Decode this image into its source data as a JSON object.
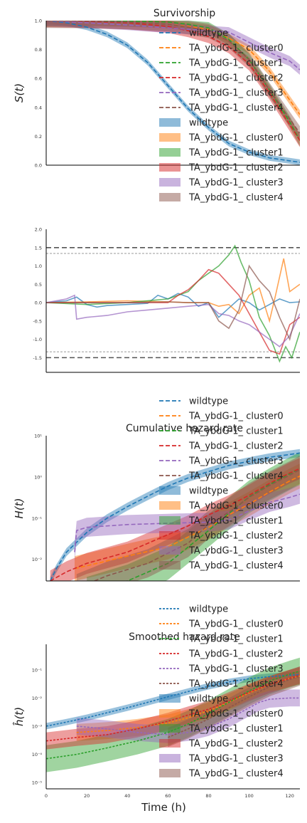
{
  "figure": {
    "xlabel": "Time (h)"
  },
  "chart_data": [
    {
      "type": "line",
      "title": "Survivorship",
      "ylabel": "S(t)",
      "xlim": [
        0,
        125
      ],
      "ylim": [
        0,
        1.0
      ],
      "yscale": "linear",
      "yticks": [
        "0.0",
        "0.2",
        "0.4",
        "0.6",
        "0.8",
        "1.0"
      ],
      "legend": {
        "placement": "right-overlapping",
        "line_entries": [
          "wildtype",
          "TA_ybdG-1_ cluster0",
          "TA_ybdG-1_ cluster1",
          "TA_ybdG-1_ cluster2",
          "TA_ybdG-1_ cluster3",
          "TA_ybdG-1_ cluster4"
        ],
        "patch_entries": [
          "wildtype",
          "TA_ybdG-1_ cluster0",
          "TA_ybdG-1_ cluster1",
          "TA_ybdG-1_ cluster2",
          "TA_ybdG-1_ cluster3",
          "TA_ybdG-1_ cluster4"
        ]
      },
      "series": [
        {
          "name": "wildtype",
          "color": "#1f77b4",
          "x": [
            0,
            10,
            20,
            30,
            40,
            50,
            60,
            70,
            80,
            90,
            100,
            110,
            120,
            125
          ],
          "y": [
            1.0,
            0.985,
            0.955,
            0.905,
            0.83,
            0.71,
            0.55,
            0.39,
            0.26,
            0.15,
            0.09,
            0.05,
            0.03,
            0.02
          ],
          "band": 0.02
        },
        {
          "name": "TA_ybdG-1_ cluster0",
          "color": "#ff7f0e",
          "x": [
            0,
            20,
            40,
            60,
            70,
            80,
            90,
            100,
            110,
            120,
            125
          ],
          "y": [
            1.0,
            0.997,
            0.99,
            0.975,
            0.96,
            0.94,
            0.88,
            0.8,
            0.65,
            0.45,
            0.35
          ],
          "band": 0.03
        },
        {
          "name": "TA_ybdG-1_ cluster1",
          "color": "#2ca02c",
          "x": [
            0,
            20,
            40,
            60,
            70,
            80,
            90,
            100,
            110,
            120,
            125
          ],
          "y": [
            1.0,
            1.0,
            0.998,
            0.99,
            0.975,
            0.95,
            0.87,
            0.73,
            0.52,
            0.3,
            0.17
          ],
          "band": 0.04
        },
        {
          "name": "TA_ybdG-1_ cluster2",
          "color": "#d62728",
          "x": [
            0,
            20,
            40,
            60,
            70,
            80,
            90,
            100,
            110,
            120,
            125
          ],
          "y": [
            1.0,
            0.995,
            0.985,
            0.96,
            0.93,
            0.89,
            0.82,
            0.7,
            0.5,
            0.28,
            0.17
          ],
          "band": 0.045
        },
        {
          "name": "TA_ybdG-1_ cluster3",
          "color": "#9467bd",
          "x": [
            0,
            20,
            40,
            60,
            80,
            90,
            100,
            110,
            120,
            125
          ],
          "y": [
            1.0,
            0.985,
            0.97,
            0.95,
            0.93,
            0.92,
            0.85,
            0.78,
            0.72,
            0.66
          ],
          "band": 0.035
        },
        {
          "name": "TA_ybdG-1_ cluster4",
          "color": "#8c564b",
          "x": [
            0,
            20,
            40,
            60,
            70,
            80,
            90,
            100,
            110,
            120,
            125
          ],
          "y": [
            1.0,
            0.998,
            0.99,
            0.975,
            0.955,
            0.93,
            0.86,
            0.73,
            0.52,
            0.32,
            0.22
          ],
          "band": 0.05
        }
      ]
    },
    {
      "type": "line",
      "title": "",
      "ylabel": "",
      "xlim": [
        0,
        125
      ],
      "ylim": [
        -1.9,
        2.0
      ],
      "yscale": "linear",
      "yticks": [
        "-1.5",
        "-1.0",
        "-0.5",
        "0.0",
        "0.5",
        "1.0",
        "1.5",
        "2.0"
      ],
      "reference_lines": [
        {
          "y": 1.5,
          "style": "thick-dashed"
        },
        {
          "y": 1.34,
          "style": "thin-dashed"
        },
        {
          "y": -1.34,
          "style": "thin-dashed"
        },
        {
          "y": -1.5,
          "style": "thick-dashed"
        }
      ],
      "series": [
        {
          "name": "wildtype",
          "color": "#1f77b4",
          "x": [
            0,
            10,
            15,
            20,
            25,
            30,
            40,
            50,
            55,
            60,
            65,
            70,
            75,
            80,
            85,
            90,
            95,
            100,
            105,
            110,
            115,
            120,
            125
          ],
          "y": [
            0,
            0.05,
            0.15,
            -0.05,
            -0.12,
            -0.08,
            -0.05,
            -0.02,
            0.2,
            0.1,
            0.25,
            0.15,
            -0.1,
            0.0,
            -0.4,
            -0.15,
            0.1,
            0.0,
            -0.2,
            -0.05,
            0.1,
            0.0,
            0.02
          ]
        },
        {
          "name": "TA_ybdG-1_ cluster0",
          "color": "#ff7f0e",
          "x": [
            0,
            20,
            40,
            60,
            70,
            80,
            85,
            90,
            95,
            100,
            105,
            110,
            113,
            117,
            120,
            125
          ],
          "y": [
            0,
            0.02,
            0.05,
            0.02,
            0.0,
            0.0,
            -0.1,
            -0.05,
            -0.3,
            0.2,
            0.4,
            -0.5,
            0.2,
            1.2,
            0.3,
            0.5
          ]
        },
        {
          "name": "TA_ybdG-1_ cluster1",
          "color": "#2ca02c",
          "x": [
            0,
            20,
            40,
            60,
            70,
            75,
            80,
            85,
            90,
            93,
            96,
            100,
            105,
            110,
            115,
            118,
            121,
            125
          ],
          "y": [
            0,
            -0.05,
            0.0,
            0.1,
            0.3,
            0.6,
            0.8,
            1.0,
            1.3,
            1.55,
            1.1,
            0.6,
            -0.4,
            -0.9,
            -1.6,
            -1.2,
            -1.5,
            -0.8
          ]
        },
        {
          "name": "TA_ybdG-1_ cluster2",
          "color": "#d62728",
          "x": [
            0,
            20,
            40,
            60,
            65,
            70,
            75,
            80,
            85,
            90,
            95,
            100,
            105,
            110,
            115,
            120,
            125
          ],
          "y": [
            0,
            0.0,
            0.0,
            0.0,
            0.2,
            0.35,
            0.6,
            0.9,
            0.8,
            0.5,
            0.2,
            -0.3,
            -0.8,
            -1.3,
            -1.4,
            -0.6,
            -0.4
          ]
        },
        {
          "name": "TA_ybdG-1_ cluster3",
          "color": "#9467bd",
          "x": [
            0,
            10,
            14,
            15,
            20,
            30,
            40,
            50,
            60,
            70,
            80,
            85,
            90,
            95,
            100,
            105,
            110,
            115,
            120,
            125
          ],
          "y": [
            0,
            0.1,
            0.2,
            -0.45,
            -0.4,
            -0.35,
            -0.25,
            -0.2,
            -0.15,
            -0.1,
            -0.05,
            -0.3,
            -0.35,
            -0.5,
            -0.6,
            -0.8,
            -1.0,
            -1.2,
            -0.9,
            -0.3
          ]
        },
        {
          "name": "TA_ybdG-1_ cluster4",
          "color": "#8c564b",
          "x": [
            0,
            20,
            40,
            60,
            70,
            80,
            85,
            90,
            95,
            100,
            105,
            110,
            115,
            120,
            125
          ],
          "y": [
            0,
            0.0,
            0.0,
            0.02,
            0.0,
            0.0,
            -0.5,
            -0.7,
            -0.2,
            1.0,
            0.6,
            0.3,
            -0.4,
            -1.0,
            0.1
          ]
        }
      ]
    },
    {
      "type": "line",
      "title": "Cumulative hazard rate",
      "ylabel": "H(t)",
      "xlim": [
        0,
        125
      ],
      "ylim": [
        0.003,
        10
      ],
      "yscale": "log",
      "yticks": [
        "10⁻²",
        "10⁻¹",
        "10⁰",
        "10¹"
      ],
      "legend": {
        "placement": "right-overlapping",
        "line_entries": [
          "wildtype",
          "TA_ybdG-1_ cluster0",
          "TA_ybdG-1_ cluster1",
          "TA_ybdG-1_ cluster2",
          "TA_ybdG-1_ cluster3",
          "TA_ybdG-1_ cluster4"
        ],
        "patch_entries": [
          "wildtype",
          "TA_ybdG-1_ cluster0",
          "TA_ybdG-1_ cluster1",
          "TA_ybdG-1_ cluster2",
          "TA_ybdG-1_ cluster3",
          "TA_ybdG-1_ cluster4"
        ]
      },
      "series": [
        {
          "name": "wildtype",
          "color": "#1f77b4",
          "x": [
            2,
            5,
            10,
            20,
            30,
            40,
            50,
            60,
            70,
            80,
            90,
            100,
            110,
            120,
            125
          ],
          "y": [
            0.003,
            0.006,
            0.015,
            0.045,
            0.1,
            0.19,
            0.34,
            0.6,
            0.95,
            1.35,
            1.9,
            2.4,
            3.0,
            3.5,
            3.8
          ],
          "bandfactor": 1.25
        },
        {
          "name": "TA_ybdG-1_ cluster0",
          "color": "#ff7f0e",
          "x": [
            14,
            20,
            40,
            60,
            70,
            80,
            90,
            100,
            110,
            120,
            125
          ],
          "y": [
            0.006,
            0.007,
            0.012,
            0.02,
            0.035,
            0.06,
            0.12,
            0.22,
            0.43,
            0.8,
            1.05
          ],
          "bandfactor": 2.0
        },
        {
          "name": "TA_ybdG-1_ cluster1",
          "color": "#2ca02c",
          "x": [
            20,
            40,
            60,
            70,
            80,
            90,
            100,
            110,
            120,
            125
          ],
          "y": [
            0.0015,
            0.003,
            0.008,
            0.02,
            0.05,
            0.13,
            0.33,
            0.65,
            1.2,
            1.6
          ],
          "bandfactor": 2.5
        },
        {
          "name": "TA_ybdG-1_ cluster2",
          "color": "#d62728",
          "x": [
            2,
            10,
            20,
            40,
            60,
            70,
            80,
            90,
            100,
            110,
            120,
            125
          ],
          "y": [
            0.003,
            0.005,
            0.008,
            0.015,
            0.04,
            0.065,
            0.12,
            0.2,
            0.36,
            0.7,
            1.25,
            1.6
          ],
          "bandfactor": 1.8
        },
        {
          "name": "TA_ybdG-1_ cluster3",
          "color": "#9467bd",
          "x": [
            14,
            15,
            20,
            40,
            60,
            80,
            90,
            100,
            110,
            120,
            125
          ],
          "y": [
            0.015,
            0.05,
            0.06,
            0.07,
            0.075,
            0.08,
            0.09,
            0.15,
            0.24,
            0.32,
            0.38
          ],
          "bandfactor": 1.7
        },
        {
          "name": "TA_ybdG-1_ cluster4",
          "color": "#8c564b",
          "x": [
            15,
            30,
            50,
            70,
            80,
            90,
            100,
            110,
            120,
            125
          ],
          "y": [
            0.002,
            0.004,
            0.008,
            0.025,
            0.07,
            0.14,
            0.32,
            0.62,
            1.1,
            1.5
          ],
          "bandfactor": 2.2
        }
      ]
    },
    {
      "type": "line",
      "title": "Smoothed hazard rate",
      "ylabel": "ĥ(t)",
      "xlim": [
        0,
        125
      ],
      "ylim": [
        6e-06,
        0.8
      ],
      "yscale": "log",
      "xticks": [
        "0",
        "20",
        "40",
        "60",
        "80",
        "100",
        "120"
      ],
      "yticks": [
        "10⁻⁵",
        "10⁻⁴",
        "10⁻³",
        "10⁻²",
        "10⁻¹"
      ],
      "xlabel": "Time (h)",
      "legend": {
        "placement": "right-overlapping",
        "line_entries": [
          "wildtype",
          "TA_ybdG-1_ cluster0",
          "TA_ybdG-1_ cluster1",
          "TA_ybdG-1_ cluster2",
          "TA_ybdG-1_ cluster3",
          "TA_ybdG-1_ cluster4"
        ],
        "patch_entries": [
          "wildtype",
          "TA_ybdG-1_ cluster0",
          "TA_ybdG-1_ cluster1",
          "TA_ybdG-1_ cluster2",
          "TA_ybdG-1_ cluster3",
          "TA_ybdG-1_ cluster4"
        ]
      },
      "series": [
        {
          "name": "wildtype",
          "color": "#1f77b4",
          "x": [
            0,
            10,
            20,
            30,
            40,
            50,
            60,
            70,
            80,
            90,
            100,
            110,
            120,
            125
          ],
          "y": [
            0.001,
            0.0014,
            0.002,
            0.003,
            0.0045,
            0.007,
            0.011,
            0.017,
            0.026,
            0.037,
            0.048,
            0.057,
            0.064,
            0.067
          ],
          "bandfactor": 1.3
        },
        {
          "name": "TA_ybdG-1_ cluster0",
          "color": "#ff7f0e",
          "x": [
            15,
            30,
            45,
            60,
            70,
            80,
            90,
            100,
            110,
            120,
            125
          ],
          "y": [
            0.0006,
            0.0007,
            0.0009,
            0.0013,
            0.002,
            0.0035,
            0.007,
            0.015,
            0.03,
            0.05,
            0.06
          ],
          "bandfactor": 2.0
        },
        {
          "name": "TA_ybdG-1_ cluster1",
          "color": "#2ca02c",
          "x": [
            0,
            15,
            30,
            45,
            60,
            70,
            80,
            90,
            100,
            110,
            120,
            125
          ],
          "y": [
            7e-05,
            0.0001,
            0.00017,
            0.0003,
            0.0006,
            0.0012,
            0.0028,
            0.007,
            0.018,
            0.04,
            0.07,
            0.09
          ],
          "bandfactor": 3.0
        },
        {
          "name": "TA_ybdG-1_ cluster2",
          "color": "#d62728",
          "x": [
            0,
            15,
            30,
            45,
            60,
            70,
            80,
            90,
            100,
            110,
            120,
            125
          ],
          "y": [
            0.0003,
            0.0004,
            0.0005,
            0.0008,
            0.0015,
            0.0025,
            0.004,
            0.008,
            0.016,
            0.03,
            0.05,
            0.065
          ],
          "bandfactor": 2.0
        },
        {
          "name": "TA_ybdG-1_ cluster3",
          "color": "#9467bd",
          "x": [
            15,
            30,
            45,
            60,
            70,
            80,
            90,
            100,
            105,
            110,
            120,
            125
          ],
          "y": [
            0.001,
            0.0008,
            0.0006,
            0.0005,
            0.0006,
            0.0009,
            0.0018,
            0.0045,
            0.007,
            0.009,
            0.01,
            0.01
          ],
          "bandfactor": 2.0
        },
        {
          "name": "TA_ybdG-1_ cluster4",
          "color": "#8c564b",
          "x": [
            60,
            70,
            80,
            90,
            100,
            110,
            120,
            125
          ],
          "y": [
            0.0004,
            0.0008,
            0.0018,
            0.0045,
            0.011,
            0.025,
            0.045,
            0.06
          ],
          "bandfactor": 2.2
        }
      ]
    }
  ]
}
